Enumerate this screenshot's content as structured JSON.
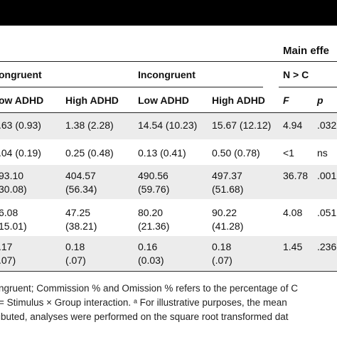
{
  "header": {
    "main_effects": "Main effe",
    "congruent": "ongruent",
    "incongruent": "Incongruent",
    "contrast": "N > C",
    "sub": [
      "ow ADHD",
      "High ADHD",
      "Low ADHD",
      "High ADHD",
      "F",
      "p"
    ]
  },
  "rows": [
    {
      "cells": [
        ".63 (0.93)",
        "1.38 (2.28)",
        "14.54 (10.23)",
        "15.67 (12.12)",
        "4.94",
        ".032"
      ]
    },
    {
      "cells": [
        ".04 (0.19)",
        "0.25 (0.48)",
        "0.13 (0.41)",
        "0.50 (0.78)",
        "<1",
        "ns"
      ]
    },
    {
      "cells": [
        "93.10",
        "404.57",
        "490.56",
        "497.37",
        "36.78",
        ".001"
      ],
      "sub": [
        "30.08)",
        "(56.34)",
        "(59.76)",
        "(51.68)"
      ]
    },
    {
      "cells": [
        "6.08",
        "47.25",
        "80.20",
        "90.22",
        "4.08",
        ".051"
      ],
      "sub": [
        "15.01)",
        "(38.21)",
        "(21.36)",
        "(41.28)"
      ]
    },
    {
      "cells": [
        ".17",
        "0.18",
        "0.16",
        "0.18",
        "1.45",
        ".236"
      ],
      "sub": [
        ".07)",
        "(.07)",
        "(0.03)",
        "(.07)"
      ]
    }
  ],
  "footnote": {
    "line1": "ngruent; Commission % and Omission % refers to the percentage of C",
    "line2": "= Stimulus × Group interaction. ᵃ For illustrative purposes, the mean",
    "line3": "ibuted, analyses were performed on the square root transformed dat"
  }
}
